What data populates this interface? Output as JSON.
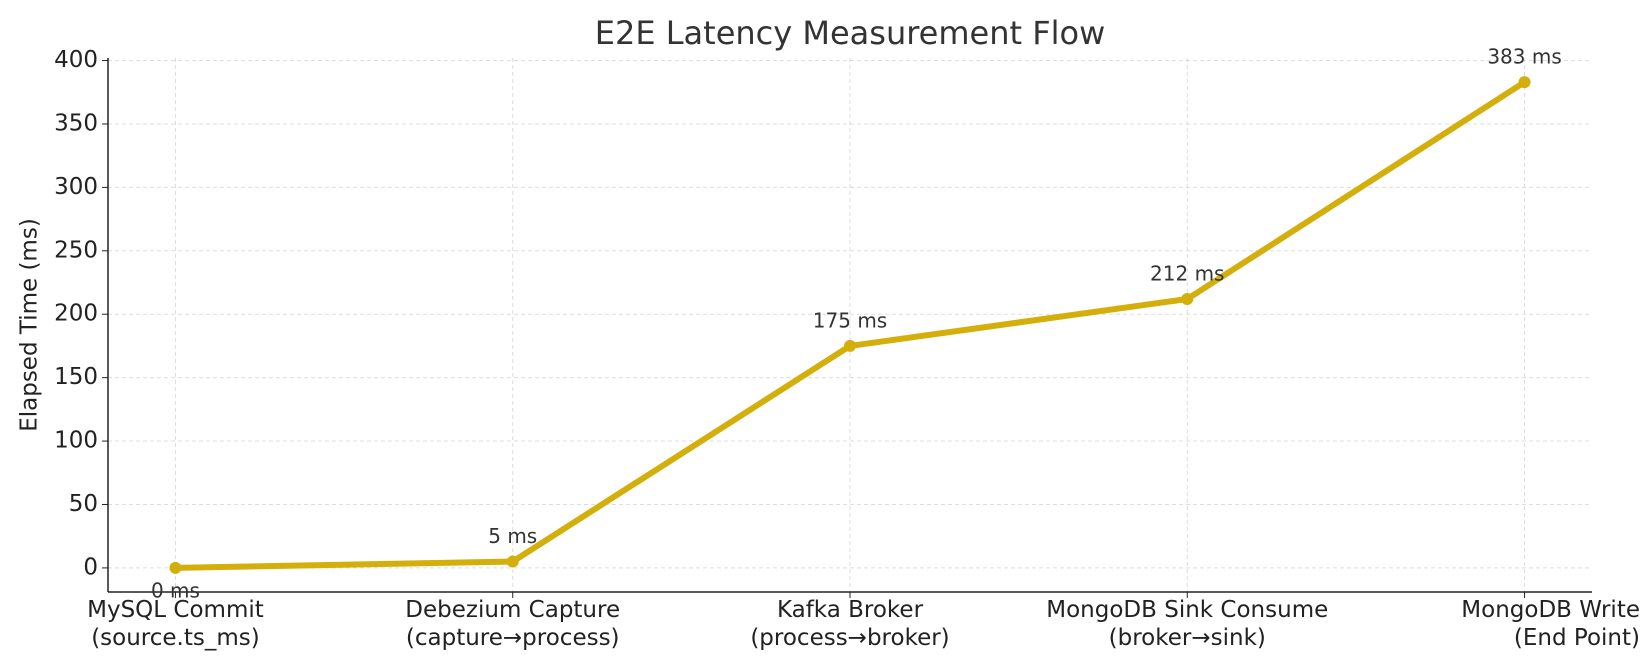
{
  "chart_data": {
    "type": "line",
    "title": "E2E Latency Measurement Flow",
    "y_label": "Elapsed Time (ms)",
    "categories": [
      "MySQL Commit\n(source.ts_ms)",
      "Debezium Capture\n(capture→process)",
      "Kafka Broker\n(process→broker)",
      "MongoDB Sink Consume\n(broker→sink)",
      "MongoDB Write\n(End Point)"
    ],
    "series": [
      {
        "name": "Elapsed Time",
        "color": "#d4af0b",
        "values": [
          0,
          5,
          175,
          212,
          383
        ],
        "value_labels": [
          "0 ms",
          "5 ms",
          "175 ms",
          "212 ms",
          "383 ms"
        ]
      }
    ],
    "ylim": [
      -19,
      402
    ],
    "yticks": [
      0,
      50,
      100,
      150,
      200,
      250,
      300,
      350,
      400
    ],
    "grid": true
  }
}
